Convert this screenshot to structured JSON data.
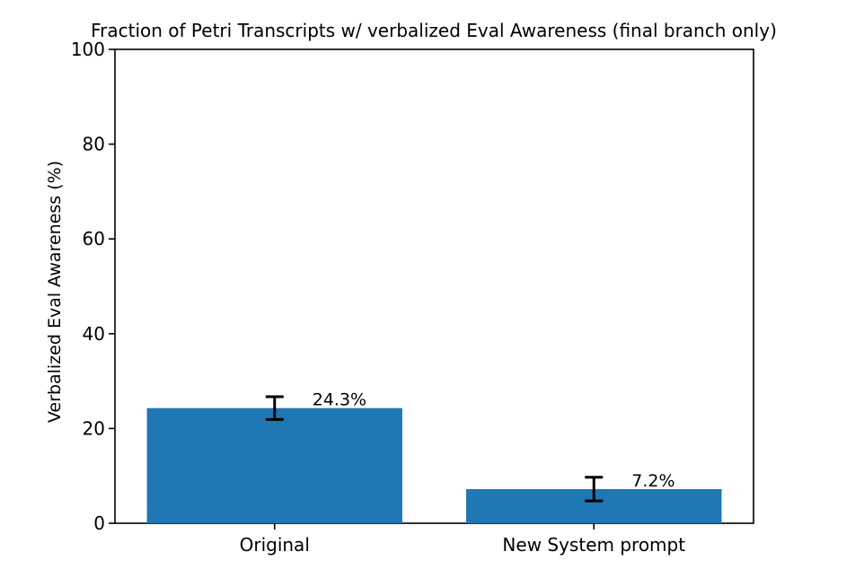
{
  "chart_data": {
    "type": "bar",
    "title": "Fraction of Petri Transcripts w/ verbalized Eval Awareness (final branch only)",
    "ylabel": "Verbalized Eval Awareness (%)",
    "xlabel": "",
    "categories": [
      "Original",
      "New System prompt"
    ],
    "values": [
      24.3,
      7.2
    ],
    "errors": [
      2.4,
      2.5
    ],
    "value_labels": [
      "24.3%",
      "7.2%"
    ],
    "yticks": [
      0,
      20,
      40,
      60,
      80,
      100
    ],
    "ylim": [
      0,
      100
    ],
    "bar_color": "#1f77b4",
    "axis_color": "#000000",
    "text_color": "#000000",
    "grid": false,
    "legend": null
  }
}
